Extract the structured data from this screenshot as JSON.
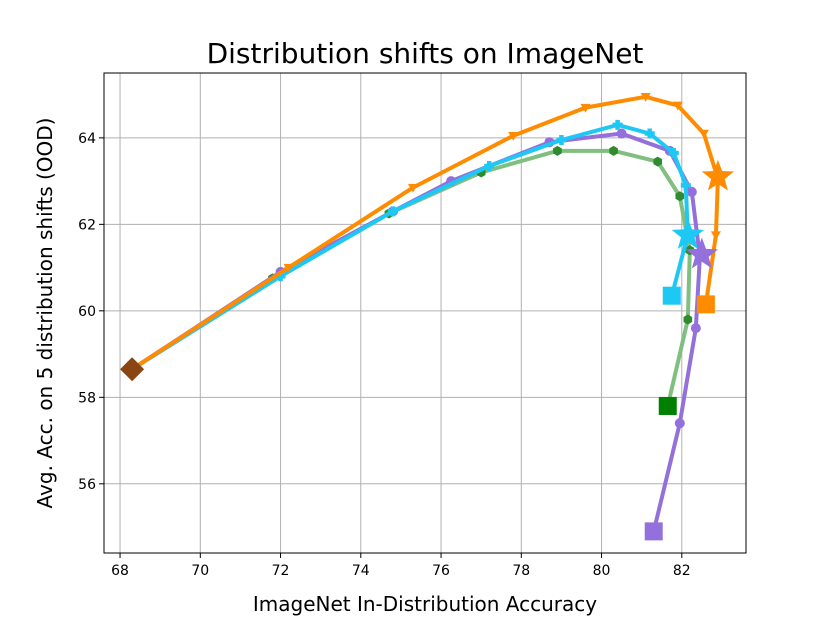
{
  "chart_data": {
    "type": "line",
    "title": "Distribution shifts on ImageNet",
    "xlabel": "ImageNet In-Distribution Accuracy",
    "ylabel": "Avg. Acc. on 5 distribution shifts (OOD)",
    "xlim": [
      67.6,
      83.6
    ],
    "ylim": [
      54.4,
      65.5
    ],
    "xticks": [
      "68",
      "70",
      "72",
      "74",
      "76",
      "78",
      "80",
      "82"
    ],
    "yticks": [
      "56",
      "58",
      "60",
      "62",
      "64"
    ],
    "grid": true,
    "start_point": {
      "x": 68.3,
      "y": 58.65,
      "color": "#8b4513",
      "marker": "diamond"
    },
    "series": [
      {
        "color": "#7fbf7f",
        "marker_color": "#2e8b2e",
        "marker": "hexagon",
        "points": [
          [
            68.3,
            58.65
          ],
          [
            71.8,
            60.75
          ],
          [
            74.7,
            62.25
          ],
          [
            77,
            63.2
          ],
          [
            78.9,
            63.7
          ],
          [
            80.3,
            63.7
          ],
          [
            81.4,
            63.45
          ],
          [
            81.95,
            62.65
          ],
          [
            82.2,
            61.4
          ],
          [
            82.15,
            59.8
          ],
          [
            81.65,
            57.8
          ]
        ],
        "end_marker": {
          "x": 81.65,
          "y": 57.8,
          "color": "#008000",
          "marker": "square"
        }
      },
      {
        "color": "#9370db",
        "marker_color": "#9370db",
        "marker": "circle",
        "points": [
          [
            68.3,
            58.65
          ],
          [
            72,
            60.9
          ],
          [
            74.8,
            62.3
          ],
          [
            76.25,
            63
          ],
          [
            78.7,
            63.9
          ],
          [
            80.5,
            64.1
          ],
          [
            81.7,
            63.7
          ],
          [
            82.25,
            62.75
          ],
          [
            82.45,
            61.25
          ],
          [
            82.35,
            59.6
          ],
          [
            81.95,
            57.4
          ],
          [
            81.3,
            54.9
          ]
        ],
        "end_marker": {
          "x": 81.3,
          "y": 54.9,
          "color": "#9370db",
          "marker": "square"
        },
        "star": {
          "x": 82.5,
          "y": 61.3,
          "color": "#9370db"
        }
      },
      {
        "color": "#1ec8f5",
        "marker_color": "#1ec8f5",
        "marker": "plus",
        "points": [
          [
            68.3,
            58.65
          ],
          [
            72,
            60.8
          ],
          [
            74.8,
            62.3
          ],
          [
            77.2,
            63.35
          ],
          [
            79,
            63.95
          ],
          [
            80.4,
            64.3
          ],
          [
            81.2,
            64.1
          ],
          [
            81.8,
            63.65
          ],
          [
            82.1,
            62.9
          ],
          [
            82.15,
            61.75
          ],
          [
            81.75,
            60.35
          ]
        ],
        "end_marker": {
          "x": 81.75,
          "y": 60.35,
          "color": "#1ec8f5",
          "marker": "square"
        },
        "star": {
          "x": 82.15,
          "y": 61.75,
          "color": "#1ec8f5"
        }
      },
      {
        "color": "#ff8c00",
        "marker_color": "#ff8c00",
        "marker": "triangle-down",
        "points": [
          [
            68.3,
            58.65
          ],
          [
            72.2,
            61
          ],
          [
            75.3,
            62.85
          ],
          [
            77.8,
            64.05
          ],
          [
            79.6,
            64.7
          ],
          [
            81.1,
            64.95
          ],
          [
            81.9,
            64.75
          ],
          [
            82.55,
            64.1
          ],
          [
            82.9,
            63.05
          ],
          [
            82.85,
            61.75
          ],
          [
            82.6,
            60.15
          ]
        ],
        "end_marker": {
          "x": 82.6,
          "y": 60.15,
          "color": "#ff8c00",
          "marker": "square"
        },
        "star": {
          "x": 82.9,
          "y": 63.1,
          "color": "#ff8c00"
        }
      }
    ]
  }
}
